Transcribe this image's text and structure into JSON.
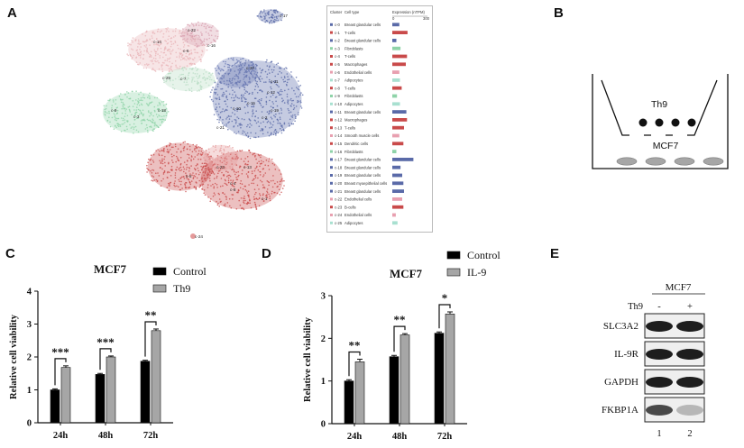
{
  "panels": {
    "A": "A",
    "B": "B",
    "C": "C",
    "D": "D",
    "E": "E"
  },
  "tsne": {
    "cluster_labels": [
      "c-22",
      "c-14",
      "c-16",
      "c-6",
      "c-25",
      "c-7",
      "c-9",
      "c-3",
      "c-18",
      "c-17",
      "c-20",
      "c-11",
      "c-12",
      "c-15",
      "c-10",
      "c-2",
      "c-19",
      "c-21",
      "c-23",
      "c-5",
      "c-13",
      "c-4",
      "c-8",
      "c-1",
      "c-24"
    ],
    "colors": {
      "pink": "#e8b4b8",
      "green": "#8fd3a8",
      "blue": "#5a6aa8",
      "red": "#c94a4a"
    }
  },
  "legend": {
    "header_cluster": "Cluster",
    "header_celltype": "Cell type",
    "header_expression": "Expression (nTPM)",
    "axis_min": "0",
    "axis_max": "300",
    "rows": [
      {
        "cluster": "c-0",
        "cell": "Breast glandular cells",
        "color": "#5a6aa8",
        "value": 60
      },
      {
        "cluster": "c-1",
        "cell": "T-cells",
        "color": "#c94a4a",
        "value": 130
      },
      {
        "cluster": "c-2",
        "cell": "Breast glandular cells",
        "color": "#5a6aa8",
        "value": 35
      },
      {
        "cluster": "c-3",
        "cell": "Fibroblasts",
        "color": "#8fd3a8",
        "value": 70
      },
      {
        "cluster": "c-4",
        "cell": "T-cells",
        "color": "#c94a4a",
        "value": 125
      },
      {
        "cluster": "c-5",
        "cell": "Macrophages",
        "color": "#c94a4a",
        "value": 115
      },
      {
        "cluster": "c-6",
        "cell": "Endothelial cells",
        "color": "#e8a0b0",
        "value": 60
      },
      {
        "cluster": "c-7",
        "cell": "Adipocytes",
        "color": "#a8e0d0",
        "value": 65
      },
      {
        "cluster": "c-8",
        "cell": "T-cells",
        "color": "#c94a4a",
        "value": 80
      },
      {
        "cluster": "c-9",
        "cell": "Fibroblasts",
        "color": "#8fd3a8",
        "value": 40
      },
      {
        "cluster": "c-10",
        "cell": "Adipocytes",
        "color": "#a8e0d0",
        "value": 65
      },
      {
        "cluster": "c-11",
        "cell": "Breast glandular cells",
        "color": "#5a6aa8",
        "value": 120
      },
      {
        "cluster": "c-12",
        "cell": "Macrophages",
        "color": "#c94a4a",
        "value": 125
      },
      {
        "cluster": "c-13",
        "cell": "T-cells",
        "color": "#c94a4a",
        "value": 100
      },
      {
        "cluster": "c-14",
        "cell": "Smooth muscle cells",
        "color": "#e8a0b0",
        "value": 60
      },
      {
        "cluster": "c-15",
        "cell": "Dendritic cells",
        "color": "#c94a4a",
        "value": 95
      },
      {
        "cluster": "c-16",
        "cell": "Fibroblasts",
        "color": "#8fd3a8",
        "value": 35
      },
      {
        "cluster": "c-17",
        "cell": "Breast glandular cells",
        "color": "#5a6aa8",
        "value": 180
      },
      {
        "cluster": "c-18",
        "cell": "Breast glandular cells",
        "color": "#5a6aa8",
        "value": 70
      },
      {
        "cluster": "c-19",
        "cell": "Breast glandular cells",
        "color": "#5a6aa8",
        "value": 85
      },
      {
        "cluster": "c-20",
        "cell": "Breast myoepithelial cells",
        "color": "#5a6aa8",
        "value": 95
      },
      {
        "cluster": "c-21",
        "cell": "Breast glandular cells",
        "color": "#5a6aa8",
        "value": 100
      },
      {
        "cluster": "c-22",
        "cell": "Endothelial cells",
        "color": "#e8a0b0",
        "value": 85
      },
      {
        "cluster": "c-23",
        "cell": "B-cells",
        "color": "#c94a4a",
        "value": 95
      },
      {
        "cluster": "c-24",
        "cell": "Endothelial cells",
        "color": "#e8a0b0",
        "value": 30
      },
      {
        "cluster": "c-25",
        "cell": "Adipocytes",
        "color": "#a8e0d0",
        "value": 45
      }
    ]
  },
  "schematic": {
    "top_label": "Th9",
    "bottom_label": "MCF7"
  },
  "chart_data": [
    {
      "type": "bar",
      "panel": "C",
      "title": "MCF7",
      "ylabel": "Relative cell viability",
      "categories": [
        "24h",
        "48h",
        "72h"
      ],
      "ylim": [
        0,
        4
      ],
      "yticks": [
        "0",
        "1",
        "2",
        "3",
        "4"
      ],
      "series": [
        {
          "name": "Control",
          "values": [
            1.0,
            1.47,
            1.87
          ],
          "errors": [
            0.03,
            0.03,
            0.03
          ],
          "color": "#000000"
        },
        {
          "name": "Th9",
          "values": [
            1.68,
            2.0,
            2.8
          ],
          "errors": [
            0.05,
            0.03,
            0.05
          ],
          "color": "#a6a6a6"
        }
      ],
      "significance": [
        "***",
        "***",
        "**"
      ],
      "legend_position": "top-right"
    },
    {
      "type": "bar",
      "panel": "D",
      "title": "MCF7",
      "ylabel": "Relative cell viability",
      "categories": [
        "24h",
        "48h",
        "72h"
      ],
      "ylim": [
        0,
        3
      ],
      "yticks": [
        "0",
        "1",
        "2",
        "3"
      ],
      "series": [
        {
          "name": "Control",
          "values": [
            1.0,
            1.57,
            2.12
          ],
          "errors": [
            0.03,
            0.03,
            0.03
          ],
          "color": "#000000"
        },
        {
          "name": "IL-9",
          "values": [
            1.45,
            2.08,
            2.57
          ],
          "errors": [
            0.06,
            0.03,
            0.05
          ],
          "color": "#a6a6a6"
        }
      ],
      "significance": [
        "**",
        "**",
        "*"
      ],
      "legend_position": "top-right"
    }
  ],
  "blot": {
    "cell_line": "MCF7",
    "treatment_label": "Th9",
    "lane_signs": [
      "-",
      "+"
    ],
    "lane_numbers": [
      "1",
      "2"
    ],
    "proteins": [
      "SLC3A2",
      "IL-9R",
      "GAPDH",
      "FKBP1A"
    ]
  }
}
